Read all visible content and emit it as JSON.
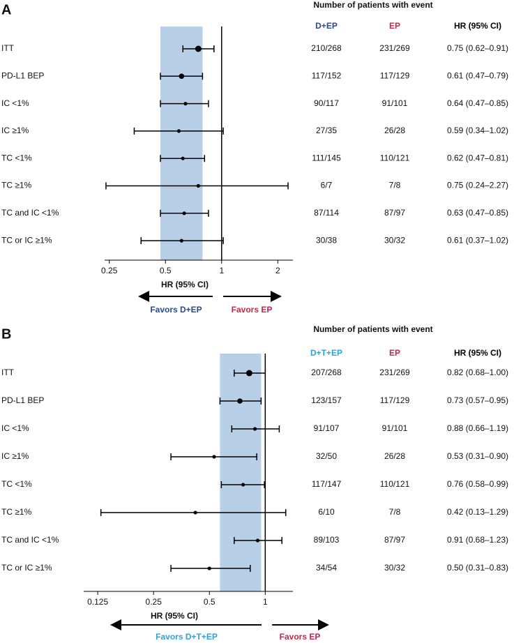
{
  "chart_data": [
    {
      "type": "forest",
      "panel": "A",
      "title": "Number of patients with event",
      "columns": [
        "D+EP",
        "EP",
        "HR (95% CI)"
      ],
      "column_colors": [
        "#2a4a8f",
        "#c0274b",
        "#000000"
      ],
      "categories": [
        "ITT",
        "PD-L1 BEP",
        "IC <1%",
        "IC ≥1%",
        "TC <1%",
        "TC ≥1%",
        "TC and IC <1%",
        "TC or IC ≥1%"
      ],
      "arm_events": [
        "210/268",
        "117/152",
        "90/117",
        "27/35",
        "111/145",
        "6/7",
        "87/114",
        "30/38"
      ],
      "control_events": [
        "231/269",
        "117/129",
        "91/101",
        "26/28",
        "110/121",
        "7/8",
        "87/97",
        "30/32"
      ],
      "values": [
        0.75,
        0.61,
        0.64,
        0.59,
        0.62,
        0.75,
        0.63,
        0.61
      ],
      "lower": [
        0.62,
        0.47,
        0.47,
        0.34,
        0.47,
        0.24,
        0.47,
        0.37
      ],
      "upper": [
        0.91,
        0.79,
        0.85,
        1.02,
        0.81,
        2.27,
        0.85,
        1.02
      ],
      "value_labels": [
        "0.75 (0.62–0.91)",
        "0.61 (0.47–0.79)",
        "0.64 (0.47–0.85)",
        "0.59 (0.34–1.02)",
        "0.62 (0.47–0.81)",
        "0.75 (0.24–2.27)",
        "0.63 (0.47–0.85)",
        "0.61 (0.37–1.02)"
      ],
      "xlim": [
        0.236,
        2.41
      ],
      "xticks": [
        0.25,
        0.5,
        1,
        2
      ],
      "log_scale": true,
      "reference": 1,
      "xlabel": "HR (95% CI)",
      "annotations": [
        "Favors D+EP",
        "Favors EP"
      ],
      "annotation_colors": [
        "#2a4a8f",
        "#c0274b"
      ],
      "color": "#000000",
      "band_color": "#b8cfe8"
    },
    {
      "type": "forest",
      "panel": "B",
      "title": "Number of patients with event",
      "columns": [
        "D+T+EP",
        "EP",
        "HR (95% CI)"
      ],
      "column_colors": [
        "#29a3dc",
        "#c0274b",
        "#000000"
      ],
      "categories": [
        "ITT",
        "PD-L1 BEP",
        "IC <1%",
        "IC ≥1%",
        "TC <1%",
        "TC ≥1%",
        "TC and IC <1%",
        "TC or IC ≥1%"
      ],
      "arm_events": [
        "207/268",
        "123/157",
        "91/107",
        "32/50",
        "117/147",
        "6/10",
        "89/103",
        "34/54"
      ],
      "control_events": [
        "231/269",
        "117/129",
        "91/101",
        "26/28",
        "110/121",
        "7/8",
        "87/97",
        "30/32"
      ],
      "values": [
        0.82,
        0.73,
        0.88,
        0.53,
        0.76,
        0.42,
        0.91,
        0.5
      ],
      "lower": [
        0.68,
        0.57,
        0.66,
        0.31,
        0.58,
        0.13,
        0.68,
        0.31
      ],
      "upper": [
        1.0,
        0.95,
        1.19,
        0.9,
        0.99,
        1.29,
        1.23,
        0.83
      ],
      "value_labels": [
        "0.82 (0.68–1.00)",
        "0.73 (0.57–0.95)",
        "0.88 (0.66–1.19)",
        "0.53 (0.31–0.90)",
        "0.76 (0.58–0.99)",
        "0.42 (0.13–1.29)",
        "0.91 (0.68–1.23)",
        "0.50 (0.31–0.83)"
      ],
      "xlim": [
        0.105,
        1.41
      ],
      "xticks": [
        0.125,
        0.25,
        0.5,
        1
      ],
      "log_scale": true,
      "reference": 1,
      "xlabel": "HR (95% CI)",
      "annotations": [
        "Favors D+T+EP",
        "Favors EP"
      ],
      "annotation_colors": [
        "#29a3dc",
        "#c0274b"
      ],
      "color": "#000000",
      "band_color": "#b8cfe8"
    }
  ]
}
